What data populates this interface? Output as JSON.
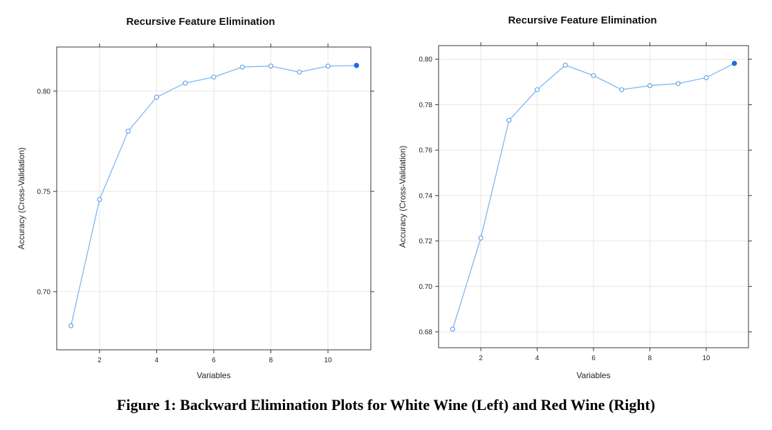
{
  "figure": {
    "caption": "Figure 1: Backward Elimination Plots for White Wine (Left) and Red Wine (Right)"
  },
  "colors": {
    "line": "#7cb6f0",
    "point": "#5a9be0",
    "highlight": "#1f6fe0",
    "frame": "#333333",
    "grid": "#e6e6e6"
  },
  "chart_data": [
    {
      "type": "line",
      "title": "Recursive Feature Elimination",
      "xlabel": "Variables",
      "ylabel": "Accuracy (Cross-Validation)",
      "x": [
        1,
        2,
        3,
        4,
        5,
        6,
        7,
        8,
        9,
        10,
        11
      ],
      "series": [
        {
          "values": [
            0.683,
            0.746,
            0.78,
            0.797,
            0.804,
            0.807,
            0.812,
            0.8125,
            0.8095,
            0.8125,
            0.8128
          ]
        }
      ],
      "highlight_x": 11,
      "xlim": [
        0.5,
        11.5
      ],
      "ylim": [
        0.671,
        0.822
      ],
      "xticks": [
        2,
        4,
        6,
        8,
        10
      ],
      "xtick_labels": [
        "2",
        "4",
        "6",
        "8",
        "10"
      ],
      "yticks": [
        0.7,
        0.75,
        0.8
      ],
      "ytick_labels": [
        "0.70",
        "0.75",
        "0.80"
      ],
      "grid": true
    },
    {
      "type": "line",
      "title": "Recursive Feature Elimination",
      "xlabel": "Variables",
      "ylabel": "Accuracy (Cross-Validation)",
      "x": [
        1,
        2,
        3,
        4,
        5,
        6,
        7,
        8,
        9,
        10,
        11
      ],
      "series": [
        {
          "values": [
            0.6812,
            0.7213,
            0.7731,
            0.7866,
            0.7974,
            0.7928,
            0.7866,
            0.7884,
            0.7893,
            0.7919,
            0.7982
          ]
        }
      ],
      "highlight_x": 11,
      "xlim": [
        0.5,
        11.5
      ],
      "ylim": [
        0.673,
        0.806
      ],
      "xticks": [
        2,
        4,
        6,
        8,
        10
      ],
      "xtick_labels": [
        "2",
        "4",
        "6",
        "8",
        "10"
      ],
      "yticks": [
        0.68,
        0.7,
        0.72,
        0.74,
        0.76,
        0.78,
        0.8
      ],
      "ytick_labels": [
        "0.68",
        "0.70",
        "0.72",
        "0.74",
        "0.76",
        "0.78",
        "0.80"
      ],
      "grid": true
    }
  ]
}
